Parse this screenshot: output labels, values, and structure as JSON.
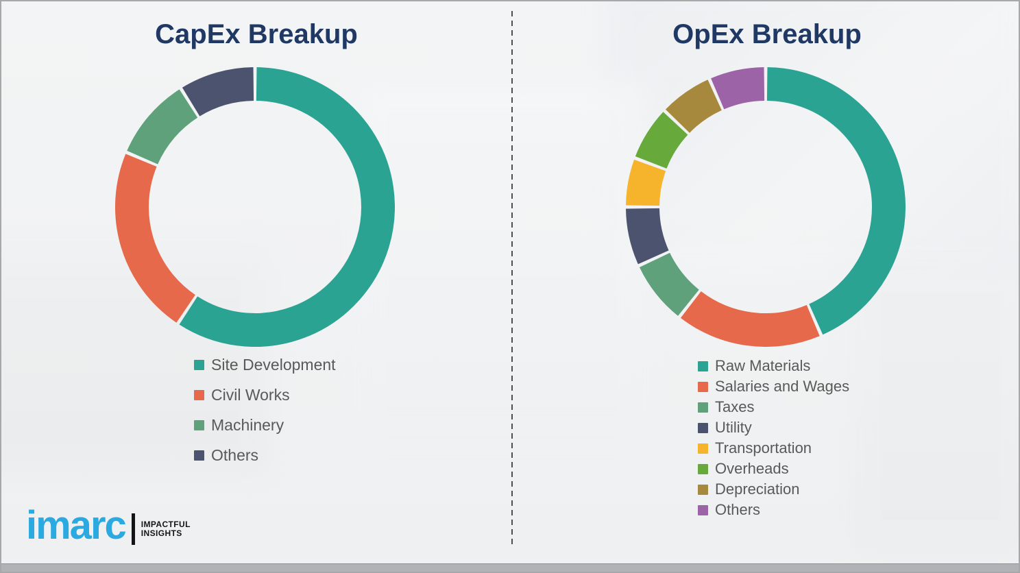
{
  "colors": {
    "title": "#1F3864",
    "legend_text": "#595959",
    "logo_blue": "#2BA9E1",
    "divider": "#4d4d4d",
    "background": "#f1f2f3"
  },
  "chart_data": [
    {
      "type": "pie",
      "subtype": "donut",
      "title": "CapEx Breakup",
      "start_angle_deg": 0,
      "direction": "clockwise",
      "legend_position": "bottom-left",
      "segments": [
        {
          "label": "Site Development",
          "value": 59.3,
          "color": "#2AA392"
        },
        {
          "label": "Civil Works",
          "value": 22.1,
          "color": "#E5694A"
        },
        {
          "label": "Machinery",
          "value": 9.7,
          "color": "#5EA17A"
        },
        {
          "label": "Others",
          "value": 8.9,
          "color": "#4C536E"
        }
      ]
    },
    {
      "type": "pie",
      "subtype": "donut",
      "title": "OpEx Breakup",
      "start_angle_deg": 0,
      "direction": "clockwise",
      "legend_position": "bottom-left",
      "segments": [
        {
          "label": "Raw Materials",
          "value": 43.5,
          "color": "#2AA392"
        },
        {
          "label": "Salaries and Wages",
          "value": 17.1,
          "color": "#E5694A"
        },
        {
          "label": "Taxes",
          "value": 7.5,
          "color": "#5EA17A"
        },
        {
          "label": "Utility",
          "value": 6.9,
          "color": "#4C536E"
        },
        {
          "label": "Transportation",
          "value": 5.7,
          "color": "#F6B32C"
        },
        {
          "label": "Overheads",
          "value": 6.4,
          "color": "#68A93B"
        },
        {
          "label": "Depreciation",
          "value": 6.3,
          "color": "#A7893E"
        },
        {
          "label": "Others",
          "value": 6.6,
          "color": "#9C64A6"
        }
      ]
    }
  ],
  "logo": {
    "brand": "imarc",
    "tagline_line1": "IMPACTFUL",
    "tagline_line2": "INSIGHTS"
  }
}
